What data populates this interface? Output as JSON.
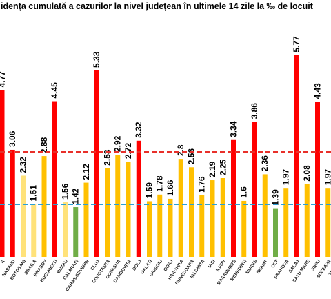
{
  "chart_data": {
    "type": "bar",
    "title": "idența cumulată a cazurilor la nivel județean în ultimele 14 zile la ‰ de locuit",
    "categories": [
      "R",
      "NASAUD",
      "BOTOSANI",
      "BRAILA",
      "BRASOV",
      "BUCURESTI",
      "BUZAU",
      "CALARASI",
      "CARAS-SEVERIN",
      "CLUJ",
      "CONSTANTA",
      "COVASNA",
      "DAMBOVITA",
      "DOLJ",
      "GALATI",
      "GIURGIU",
      "GORJ",
      "HARGHITA",
      "HUNEDOARA",
      "IALOMITA",
      "IASI",
      "ILFOV",
      "MARAMURES",
      "MEHEDINTI",
      "MURES",
      "NEAMT",
      "OLT",
      "PRAHOVA",
      "SALAJ",
      "SATU MARE",
      "SIBIU",
      "SUCEAVA",
      "TELEOR"
    ],
    "values": [
      4.77,
      3.06,
      2.32,
      1.51,
      2.88,
      4.45,
      1.56,
      1.42,
      2.12,
      5.33,
      2.53,
      2.92,
      2.72,
      3.32,
      1.59,
      1.78,
      1.66,
      2.8,
      2.56,
      1.76,
      2.19,
      2.25,
      3.34,
      1.6,
      3.86,
      2.36,
      1.39,
      1.97,
      5.77,
      2.08,
      4.43,
      1.97,
      null
    ],
    "colors": [
      "#ff0000",
      "#ff0000",
      "#ffe27a",
      "#ffe27a",
      "#ffc000",
      "#ff0000",
      "#ffe27a",
      "#70ad47",
      "#ffc000",
      "#ff0000",
      "#ffc000",
      "#ffc000",
      "#ffc000",
      "#ff0000",
      "#ffc000",
      "#ffc000",
      "#ffc000",
      "#ffc000",
      "#ffc000",
      "#ffc000",
      "#ffc000",
      "#ffc000",
      "#ff0000",
      "#ffc000",
      "#ff0000",
      "#ffc000",
      "#70ad47",
      "#ffc000",
      "#ff0000",
      "#ffc000",
      "#ff0000",
      "#ffc000",
      "#ffc000"
    ],
    "reference_lines": [
      {
        "value": 3,
        "color": "#e8302a"
      },
      {
        "value": 1.5,
        "color": "#2a9fd6"
      }
    ],
    "ylim": [
      0,
      6
    ]
  }
}
